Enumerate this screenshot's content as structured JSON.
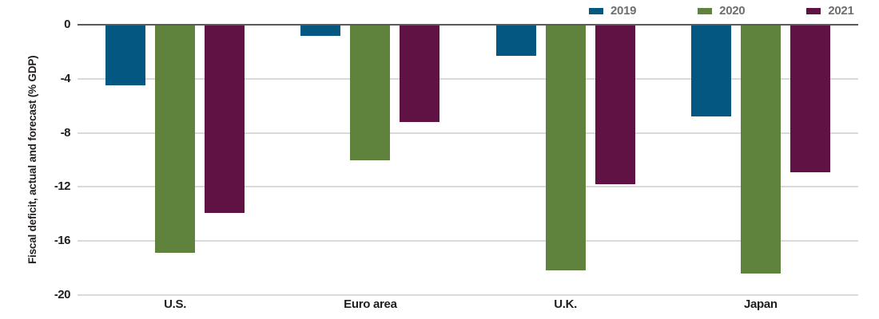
{
  "chart_data": {
    "type": "bar",
    "title": "",
    "categories": [
      "U.S.",
      "Euro area",
      "U.K.",
      "Japan"
    ],
    "series": [
      {
        "name": "2019",
        "color": "#045780",
        "values": [
          -4.5,
          -0.8,
          -2.3,
          -6.8
        ]
      },
      {
        "name": "2020",
        "color": "#5f833c",
        "values": [
          -16.9,
          -10.0,
          -18.2,
          -18.4
        ]
      },
      {
        "name": "2021",
        "color": "#611245",
        "values": [
          -13.9,
          -7.2,
          -11.8,
          -10.9
        ]
      }
    ],
    "xlabel": "",
    "ylabel": "Fiscal deficit, actual and forecast (% GDP)",
    "ylim": [
      0,
      -20
    ],
    "yticks": [
      0,
      -4,
      -8,
      -12,
      -16,
      -20
    ],
    "grid": "horizontal",
    "legend_position": "top-right"
  },
  "colors": {
    "background": "#ffffff",
    "gridline": "#d8d9da",
    "zero_line": "#58595b",
    "axis_text": "#1e1e1e",
    "legend_text": "#6d6e71"
  }
}
